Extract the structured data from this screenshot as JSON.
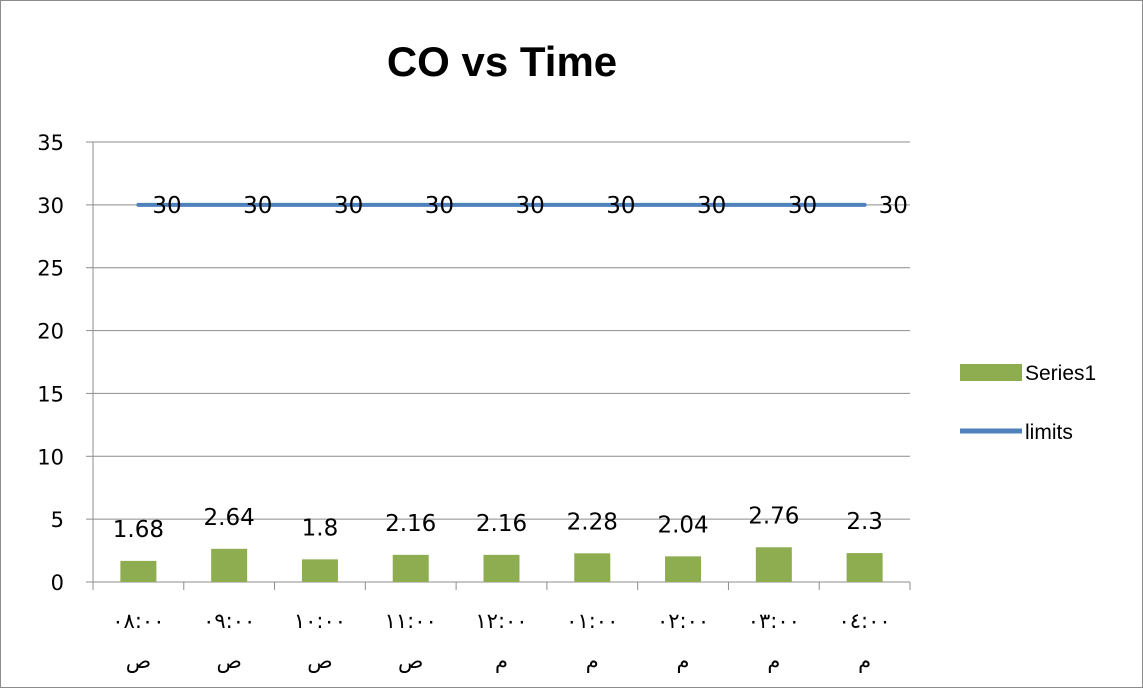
{
  "chart_data": {
    "type": "bar",
    "title": "CO vs Time",
    "categories": [
      [
        "٠٨:٠٠",
        "ص"
      ],
      [
        "٠٩:٠٠",
        "ص"
      ],
      [
        "١٠:٠٠",
        "ص"
      ],
      [
        "١١:٠٠",
        "ص"
      ],
      [
        "١٢:٠٠",
        "م"
      ],
      [
        "٠١:٠٠",
        "م"
      ],
      [
        "٠٢:٠٠",
        "م"
      ],
      [
        "٠٣:٠٠",
        "م"
      ],
      [
        "٠٤:٠٠",
        "م"
      ]
    ],
    "series": [
      {
        "name": "Series1",
        "type": "bar",
        "color": "#8eac50",
        "values": [
          1.68,
          2.64,
          1.8,
          2.16,
          2.16,
          2.28,
          2.04,
          2.76,
          2.3
        ]
      },
      {
        "name": "limits",
        "type": "line",
        "color": "#4f81bd",
        "values": [
          30,
          30,
          30,
          30,
          30,
          30,
          30,
          30,
          30
        ]
      }
    ],
    "ylim": [
      0,
      35
    ],
    "yticks": [
      0,
      5,
      10,
      15,
      20,
      25,
      30,
      35
    ],
    "grid": true,
    "legend": "right"
  }
}
